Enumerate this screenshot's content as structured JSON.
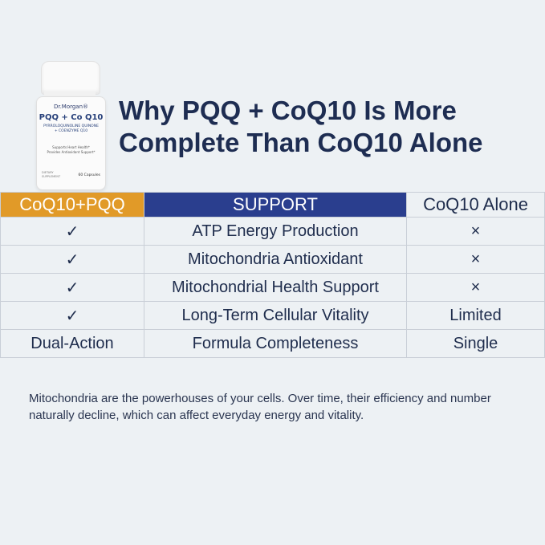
{
  "product": {
    "brand": "Dr.Morgan®",
    "name": "PQQ + Co Q10",
    "subtitle_1": "PYRROLOQUINOLINE QUINONE",
    "subtitle_2": "+ COENZYME Q10",
    "claim_1": "Supports Heart Health*",
    "claim_2": "Provides Antioxidant Support*",
    "count": "60 Capsules",
    "left_1": "DIETARY",
    "left_2": "SUPPLEMENT"
  },
  "headline": {
    "line1": "Why PQQ + CoQ10 Is More",
    "line2": "Complete Than CoQ10 Alone"
  },
  "table": {
    "headers": [
      "CoQ10+PQQ",
      "SUPPORT",
      "CoQ10 Alone"
    ],
    "rows": [
      [
        "✓",
        "ATP Energy Production",
        "×"
      ],
      [
        "✓",
        "Mitochondria Antioxidant",
        "×"
      ],
      [
        "✓",
        "Mitochondrial Health Support",
        "×"
      ],
      [
        "✓",
        "Long-Term Cellular Vitality",
        "Limited"
      ],
      [
        "Dual-Action",
        "Formula Completeness",
        "Single"
      ]
    ]
  },
  "description": "Mitochondria are the powerhouses of your cells. Over time, their efficiency and number naturally decline, which can affect everyday  energy and vitality.",
  "colors": {
    "accent_orange": "#e19a28",
    "accent_navy": "#2a3e8e",
    "background": "#edf1f4"
  }
}
